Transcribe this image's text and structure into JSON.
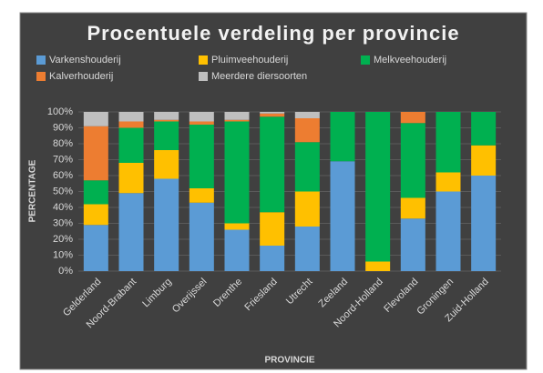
{
  "chart_data": {
    "type": "stacked_bar",
    "title": "Procentuele verdeling per provincie",
    "x_label": "PROVINCIE",
    "y_label": "PERCENTAGE",
    "categories": [
      "Gelderland",
      "Noord-Brabant",
      "Limburg",
      "Overijssel",
      "Drenthe",
      "Friesland",
      "Utrecht",
      "Zeeland",
      "Noord-Holland",
      "Flevoland",
      "Groningen",
      "Zuid-Holland"
    ],
    "series": [
      {
        "name": "Varkenshouderij",
        "color": "#5b9bd5",
        "values": [
          29,
          49,
          58,
          43,
          26,
          16,
          28,
          69,
          0,
          33,
          50,
          60
        ]
      },
      {
        "name": "Pluimveehouderij",
        "color": "#ffc000",
        "values": [
          13,
          19,
          18,
          9,
          4,
          21,
          22,
          0,
          6,
          13,
          12,
          19
        ]
      },
      {
        "name": "Melkveehouderij",
        "color": "#00b050",
        "values": [
          15,
          22,
          18,
          40,
          64,
          60,
          31,
          31,
          94,
          47,
          38,
          21
        ]
      },
      {
        "name": "Kalverhouderij",
        "color": "#ed7d31",
        "values": [
          34,
          4,
          1,
          2,
          1,
          2,
          15,
          0,
          0,
          7,
          0,
          0
        ]
      },
      {
        "name": "Meerdere diersoorten",
        "color": "#bfbfbf",
        "values": [
          9,
          6,
          5,
          6,
          5,
          1,
          4,
          0,
          0,
          0,
          0,
          0
        ]
      }
    ],
    "ylim": [
      0,
      100
    ],
    "yticks": [
      {
        "value": 0,
        "label": "0%"
      },
      {
        "value": 10,
        "label": "10%"
      },
      {
        "value": 20,
        "label": "20%"
      },
      {
        "value": 30,
        "label": "30%"
      },
      {
        "value": 40,
        "label": "40%"
      },
      {
        "value": 50,
        "label": "50%"
      },
      {
        "value": 60,
        "label": "60%"
      },
      {
        "value": 70,
        "label": "70%"
      },
      {
        "value": 80,
        "label": "80%"
      },
      {
        "value": 90,
        "label": "90%"
      },
      {
        "value": 100,
        "label": "100%"
      }
    ],
    "grid": true,
    "legend": "top"
  }
}
